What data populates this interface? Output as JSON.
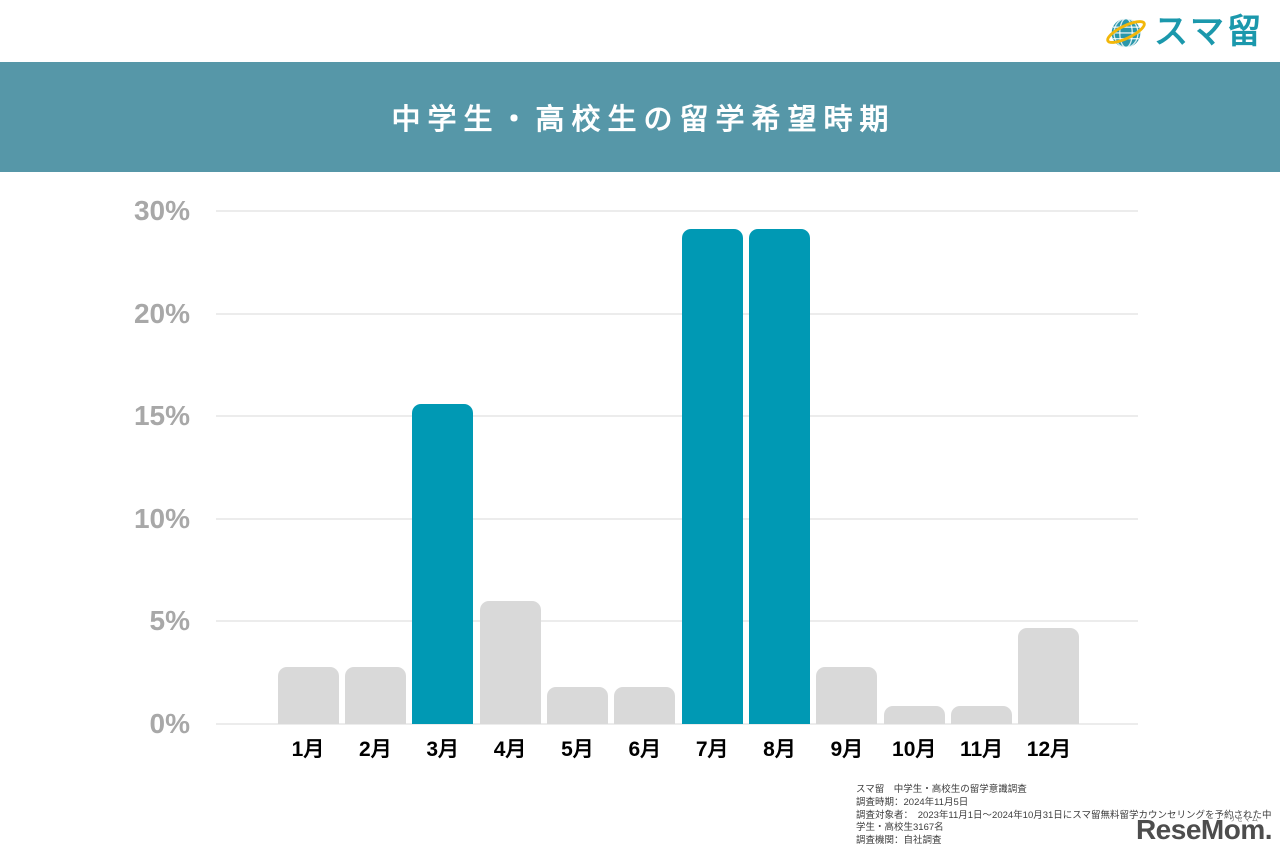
{
  "brand": {
    "name": "スマ留"
  },
  "header": {
    "title": "中学生・高校生の留学希望時期"
  },
  "chart_data": {
    "type": "bar",
    "title": "中学生・高校生の留学希望時期",
    "categories": [
      "1月",
      "2月",
      "3月",
      "4月",
      "5月",
      "6月",
      "7月",
      "8月",
      "9月",
      "10月",
      "11月",
      "12月"
    ],
    "values": [
      2.8,
      2.8,
      15.6,
      6.0,
      1.8,
      1.8,
      28.2,
      28.2,
      2.8,
      0.9,
      0.9,
      4.7
    ],
    "unit": "%",
    "yticks": [
      0,
      5,
      10,
      15,
      20,
      30
    ],
    "ytick_labels": [
      "0%",
      "5%",
      "10%",
      "15%",
      "20%",
      "30%"
    ],
    "ylim": [
      0,
      30
    ],
    "grid": true,
    "legend": false,
    "xlabel": "",
    "ylabel": "",
    "highlight_categories": [
      "3月",
      "7月",
      "8月"
    ],
    "colors": {
      "bar_default": "#d9d9d9",
      "bar_highlight": "#0099b4",
      "grid_line": "#ececec",
      "tick_label": "#a8a8a8",
      "category_label": "#000000"
    }
  },
  "footnote": {
    "lines": [
      "スマ留　中学生・高校生の留学意識調査",
      "調査時期：2024年11月5日",
      "調査対象者：　2023年11月1日〜2024年10月31日にスマ留無料留学カウンセリングを予約された中学生・高校生3167名",
      "調査機関：自社調査"
    ]
  },
  "credit": {
    "logo": "ReseMom.",
    "ruby": "リセマム"
  },
  "theme": {
    "band_color": "#5697a8",
    "title_color": "#ffffff",
    "brand_teal": "#1b98ac",
    "brand_yellow": "#f2b70a",
    "globe_fill": "#2a97ab"
  }
}
